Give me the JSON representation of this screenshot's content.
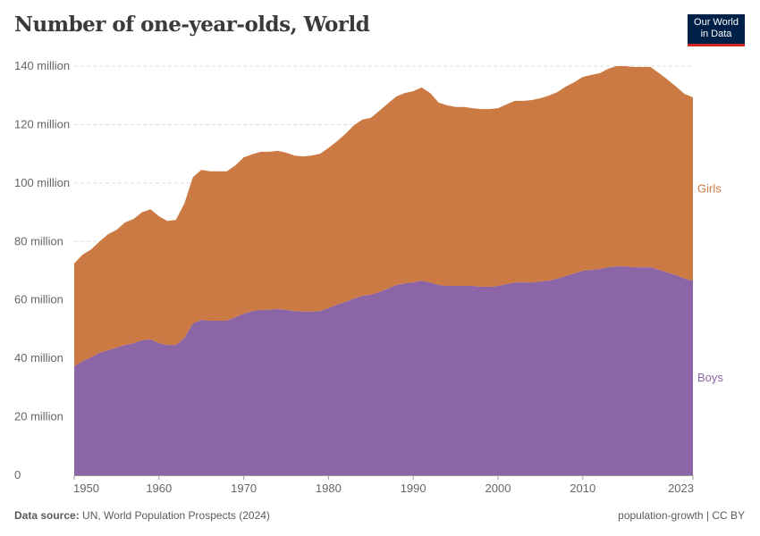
{
  "title": "Number of one-year-olds, World",
  "logo": {
    "line1": "Our World",
    "line2": "in Data"
  },
  "footer": {
    "source_label": "Data source:",
    "source": "UN, World Population Prospects (2024)",
    "right": "population-growth | CC BY"
  },
  "colors": {
    "Girls": "#cc7a44",
    "Boys": "#8b65a6",
    "grid": "#dddddd",
    "axis_text": "#666666"
  },
  "chart_data": {
    "type": "area",
    "stacked": true,
    "title": "Number of one-year-olds, World",
    "xlim": [
      1950,
      2023
    ],
    "ylim": [
      0,
      140000000
    ],
    "grid": true,
    "legend_placement": "right (inline labels)",
    "x_ticks": [
      "1950",
      "1960",
      "1970",
      "1980",
      "1990",
      "2000",
      "2010",
      "2023"
    ],
    "y_ticks": [
      {
        "value": 0,
        "label": "0"
      },
      {
        "value": 20000000,
        "label": "20 million"
      },
      {
        "value": 40000000,
        "label": "40 million"
      },
      {
        "value": 60000000,
        "label": "60 million"
      },
      {
        "value": 80000000,
        "label": "80 million"
      },
      {
        "value": 100000000,
        "label": "100 million"
      },
      {
        "value": 120000000,
        "label": "120 million"
      },
      {
        "value": 140000000,
        "label": "140 million"
      }
    ],
    "x_start": 1950,
    "unit": "million",
    "series": [
      {
        "name": "Boys",
        "values": [
          37.3,
          39.1,
          40.4,
          41.9,
          42.8,
          43.7,
          44.6,
          45.2,
          46.2,
          46.5,
          45.2,
          44.6,
          44.6,
          47,
          52,
          53.2,
          52.9,
          52.9,
          52.9,
          54.1,
          55.3,
          56.2,
          56.6,
          56.6,
          56.9,
          56.6,
          56.2,
          56,
          56,
          56.2,
          57.2,
          58.4,
          59.3,
          60.5,
          61.4,
          61.8,
          62.7,
          63.9,
          65.1,
          65.7,
          66,
          66.6,
          66,
          65.1,
          64.8,
          64.8,
          64.8,
          64.8,
          64.5,
          64.5,
          64.8,
          65.4,
          66,
          66,
          66,
          66.3,
          66.6,
          67.3,
          68.2,
          69.1,
          70,
          70.3,
          70.6,
          71.2,
          71.5,
          71.5,
          71.2,
          71.2,
          71.2,
          70.3,
          69.4,
          68.5,
          67.3,
          66.6
        ]
      },
      {
        "name": "Girls",
        "values": [
          35.2,
          36.4,
          36.9,
          38.1,
          39.7,
          40.3,
          41.9,
          42.5,
          43.8,
          44.5,
          43.4,
          42.4,
          42.8,
          46,
          50,
          51.3,
          51.1,
          51.1,
          51.1,
          51.9,
          53.5,
          53.6,
          54.1,
          54.1,
          54.1,
          53.8,
          53.2,
          53.1,
          53.4,
          53.8,
          54.8,
          55.9,
          57.5,
          59.3,
          60.3,
          60.5,
          62,
          63.3,
          64.5,
          65.1,
          65.4,
          66.1,
          64.8,
          62.4,
          61.8,
          61.2,
          61.2,
          60.8,
          60.8,
          60.8,
          60.8,
          61.5,
          62.1,
          62.1,
          62.4,
          62.7,
          63.3,
          63.8,
          64.8,
          65.4,
          66.3,
          66.7,
          67,
          67.9,
          68.5,
          68.5,
          68.5,
          68.5,
          68.5,
          67.3,
          66,
          64.5,
          63.2,
          62.7
        ]
      }
    ]
  }
}
